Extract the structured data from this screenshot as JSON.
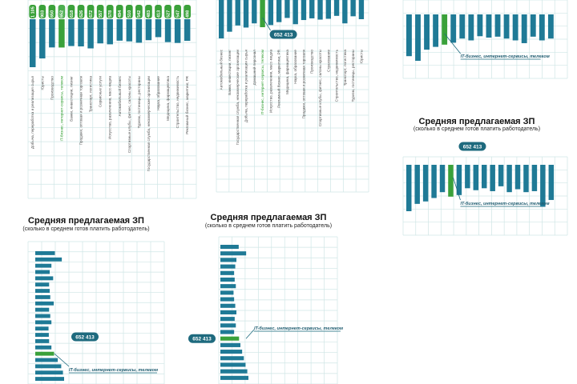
{
  "colors": {
    "bar": "#1f7a96",
    "highlight": "#3aa13a",
    "grid": "#cfe6e6",
    "pill": "#1e6a7e",
    "pill_green": "#4caf50"
  },
  "title": "Средняя предлагаемая ЗП",
  "subtitle": "(сколько в среднем готов платить работодатель)",
  "callout": {
    "value": "652 413",
    "label": "IT-бизнес, интернет-сервисы, телеком"
  },
  "chart_data": [
    {
      "id": "panel-a",
      "type": "bar",
      "orientation": "vertical-down",
      "categories": [
        "Добыча, переработка и реализация сырья",
        "Юристы",
        "Производство",
        "IT-бизнес, интернет-сервисы, телеком",
        "Банки, инвестиции, лизинг",
        "Продажи, оптовая и розничная торговля",
        "Транспорт, логистика",
        "Сервисные услуги",
        "Искусство, развлечения, масс-медиа",
        "Автомобильный бизнес",
        "Спортивные клубы, фитнес, салоны красоты",
        "Туризм, гостиницы, рестораны",
        "Государственная служба, некоммерческие организации",
        "Наука, образование",
        "Медицина, фармацевтика",
        "Строительство, недвижимость",
        "Рекламный бизнес, маркетинг, PR"
      ],
      "pill_labels": [
        "1 105",
        "903",
        "650",
        "652",
        "618",
        "626",
        "672",
        "557",
        "578",
        "494",
        "510",
        "542",
        "483",
        "413",
        "527",
        "547",
        "498"
      ],
      "values": [
        1105,
        903,
        650,
        652,
        618,
        626,
        672,
        557,
        578,
        494,
        510,
        542,
        483,
        413,
        527,
        547,
        498
      ],
      "highlight_index": 3
    },
    {
      "id": "panel-b",
      "type": "bar",
      "orientation": "vertical-down",
      "categories": [
        "Автомобильный бизнес",
        "Банки, инвестиции, лизинг",
        "Государственная служба, некоммерческие организации",
        "Добыча, переработка и реализация сырья",
        "Домашний персонал",
        "IT-бизнес, интернет-сервисы, телеком",
        "Искусство, развлечения, масс-медиа",
        "Рекламный бизнес, маркетинг, PR",
        "Медицина, фармацевтика",
        "Наука, образование",
        "Продажи, оптовая и розничная торговля",
        "Производство",
        "Спортивные клубы, фитнес, салоны красоты",
        "Страхование",
        "Строительство, недвижимость",
        "Транспорт, логистика",
        "Туризм, гостиницы, рестораны",
        "Юристы"
      ],
      "values": [
        920,
        760,
        610,
        660,
        560,
        652,
        600,
        530,
        430,
        580,
        480,
        440,
        470,
        450,
        380,
        560,
        390,
        460
      ],
      "highlight_index": 5,
      "callout_value": "652 413"
    },
    {
      "id": "panel-c",
      "type": "bar",
      "orientation": "vertical-down",
      "values": [
        900,
        1000,
        760,
        700,
        652,
        610,
        520,
        560,
        470,
        500,
        480,
        520,
        560,
        620,
        480,
        560,
        520
      ],
      "highlight_index": 4,
      "callout_value": "652 413",
      "callout_label": "IT-бизнес, интернет-сервисы, телеком"
    },
    {
      "id": "panel-d",
      "type": "bar",
      "orientation": "vertical-down",
      "values": [
        950,
        800,
        750,
        680,
        560,
        652,
        620,
        480,
        520,
        480,
        540,
        440,
        560,
        500,
        560,
        540,
        860,
        720
      ],
      "highlight_index": 5,
      "callout_value": "652 413",
      "callout_label": "IT-бизнес, интернет-сервисы, телеком"
    },
    {
      "id": "panel-e",
      "type": "bar",
      "orientation": "horizontal",
      "values": [
        680,
        920,
        560,
        500,
        620,
        480,
        500,
        520,
        640,
        480,
        520,
        560,
        460,
        470,
        480,
        560,
        652,
        780,
        900,
        960,
        1000
      ],
      "highlight_index": 16,
      "callout_value": "652 413",
      "callout_label": "IT-бизнес, интернет-сервисы, телеком"
    },
    {
      "id": "panel-f",
      "type": "bar",
      "orientation": "horizontal",
      "values": [
        640,
        900,
        560,
        520,
        480,
        500,
        540,
        460,
        480,
        520,
        560,
        500,
        540,
        480,
        652,
        700,
        760,
        820,
        880,
        940,
        980
      ],
      "highlight_index": 14,
      "callout_value": "652 413",
      "callout_label": "IT-бизнес, интернет-сервисы, телеком"
    }
  ]
}
